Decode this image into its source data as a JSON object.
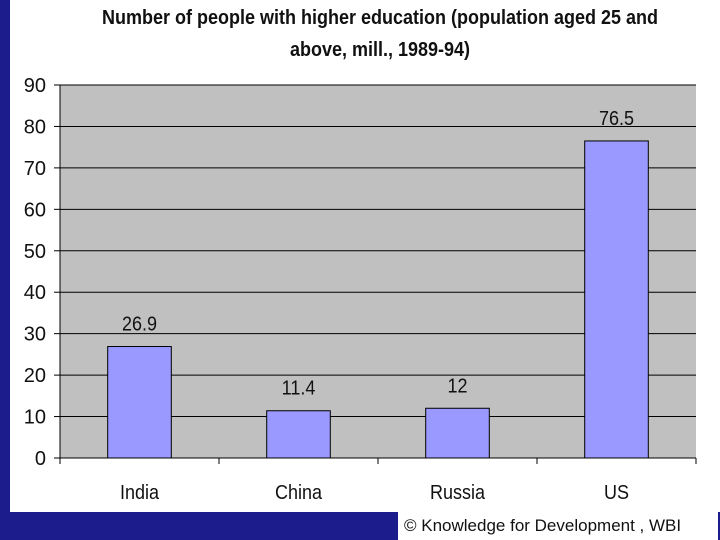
{
  "chart_data": {
    "type": "bar",
    "title": "Number of people with higher education (population aged 25 and\nabove, mill., 1989-94)",
    "categories": [
      "India",
      "China",
      "Russia",
      "US"
    ],
    "values": [
      26.9,
      11.4,
      12,
      76.5
    ],
    "data_labels": [
      "26.9",
      "11.4",
      "12",
      "76.5"
    ],
    "y_ticks": [
      "0",
      "10",
      "20",
      "30",
      "40",
      "50",
      "60",
      "70",
      "80",
      "90"
    ],
    "ylim": [
      0,
      90
    ],
    "xlabel": "",
    "ylabel": "",
    "grid": true,
    "legend": "none",
    "colors": {
      "bar_fill": "#9999ff",
      "bar_stroke": "#000000",
      "plot_background": "#c0c0c0",
      "gridline": "#000000"
    }
  },
  "footer": {
    "text": "© Knowledge for Development , WBI"
  }
}
